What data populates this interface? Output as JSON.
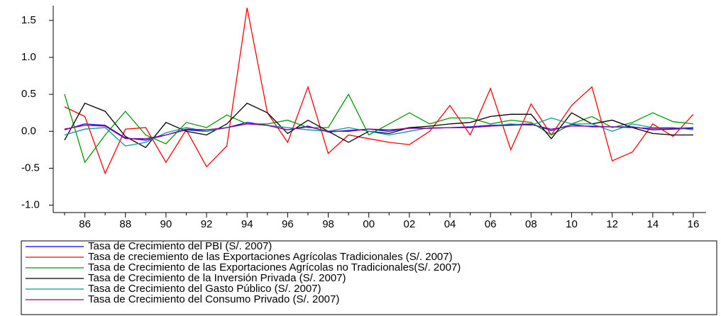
{
  "chart_data": {
    "type": "line",
    "categories": [
      null,
      "86",
      null,
      "88",
      null,
      "90",
      null,
      "92",
      null,
      "94",
      null,
      "96",
      null,
      "98",
      null,
      "00",
      null,
      "02",
      null,
      "04",
      null,
      "06",
      null,
      "08",
      null,
      "10",
      null,
      "12",
      null,
      "14",
      null,
      "16"
    ],
    "ylim": [
      -1.1,
      1.7
    ],
    "yticks": [
      {
        "value": -1.0,
        "label": "-1.0"
      },
      -0.5,
      {
        "value": 0.0,
        "label": "0.0"
      },
      0.5,
      {
        "value": 1.0,
        "label": "1.0"
      },
      1.5
    ],
    "legend": "bottom",
    "series": [
      {
        "name": "Tasa de Crecimiento del PBI (S/. 2007)",
        "color": "#0000ff",
        "values": [
          0.02,
          0.1,
          0.08,
          -0.09,
          -0.12,
          -0.05,
          0.02,
          0.0,
          0.05,
          0.12,
          0.08,
          0.02,
          0.07,
          -0.01,
          0.01,
          0.03,
          0.0,
          0.05,
          0.04,
          0.05,
          0.06,
          0.08,
          0.09,
          0.1,
          0.01,
          0.09,
          0.06,
          0.06,
          0.06,
          0.02,
          0.03,
          0.04
        ]
      },
      {
        "name": "Tasa de creciemiento de las Exportaciones Agrícolas Tradicionales (S/. 2007)",
        "color": "#ff0000",
        "values": [
          0.33,
          0.2,
          -0.57,
          0.03,
          0.05,
          -0.42,
          0.02,
          -0.48,
          -0.2,
          1.67,
          0.25,
          -0.15,
          0.6,
          -0.3,
          -0.05,
          -0.1,
          -0.15,
          -0.18,
          0.0,
          0.35,
          -0.05,
          0.58,
          -0.25,
          0.37,
          -0.05,
          0.35,
          0.6,
          -0.4,
          -0.28,
          0.1,
          -0.07,
          0.23
        ]
      },
      {
        "name": "Tasa de Crecimiento de las Exportaciones Agrícolas no Tradicionales(S/. 2007)",
        "color": "#009900",
        "values": [
          0.5,
          -0.42,
          -0.05,
          0.27,
          -0.05,
          -0.17,
          0.12,
          0.05,
          0.22,
          0.1,
          0.1,
          0.15,
          0.05,
          0.05,
          0.5,
          -0.05,
          0.1,
          0.25,
          0.1,
          0.18,
          0.18,
          0.1,
          0.15,
          0.12,
          -0.05,
          0.1,
          0.2,
          0.05,
          0.12,
          0.25,
          0.13,
          0.1
        ]
      },
      {
        "name": "Tasa de Crecimiento de la Inversión Privada (S/. 2007)",
        "color": "#000000",
        "values": [
          -0.12,
          0.38,
          0.27,
          -0.07,
          -0.22,
          0.12,
          0.0,
          -0.05,
          0.1,
          0.38,
          0.25,
          -0.03,
          0.15,
          0.0,
          -0.15,
          0.0,
          -0.03,
          0.05,
          0.07,
          0.1,
          0.12,
          0.2,
          0.23,
          0.23,
          -0.1,
          0.25,
          0.1,
          0.15,
          0.05,
          -0.03,
          -0.05,
          -0.05
        ]
      },
      {
        "name": "Tasa de Crecimiento del Gasto Público (S/. 2007)",
        "color": "#009999",
        "values": [
          -0.05,
          0.03,
          0.05,
          -0.2,
          -0.15,
          -0.02,
          0.05,
          0.0,
          0.05,
          0.1,
          0.08,
          0.05,
          0.02,
          0.0,
          0.05,
          0.0,
          -0.05,
          0.0,
          0.05,
          0.05,
          0.05,
          0.07,
          0.1,
          0.08,
          0.18,
          0.1,
          0.1,
          0.0,
          0.1,
          0.05,
          0.05,
          0.02
        ]
      },
      {
        "name": "Tasa de Crecimiento del Consumo Privado (S/. 2007)",
        "color": "#990099",
        "values": [
          0.03,
          0.08,
          0.07,
          -0.1,
          -0.1,
          -0.05,
          0.03,
          0.02,
          0.05,
          0.1,
          0.08,
          0.02,
          0.06,
          0.0,
          0.0,
          0.03,
          0.02,
          0.04,
          0.04,
          0.05,
          0.05,
          0.07,
          0.08,
          0.09,
          0.03,
          0.07,
          0.07,
          0.06,
          0.05,
          0.04,
          0.04,
          0.05
        ]
      }
    ]
  }
}
